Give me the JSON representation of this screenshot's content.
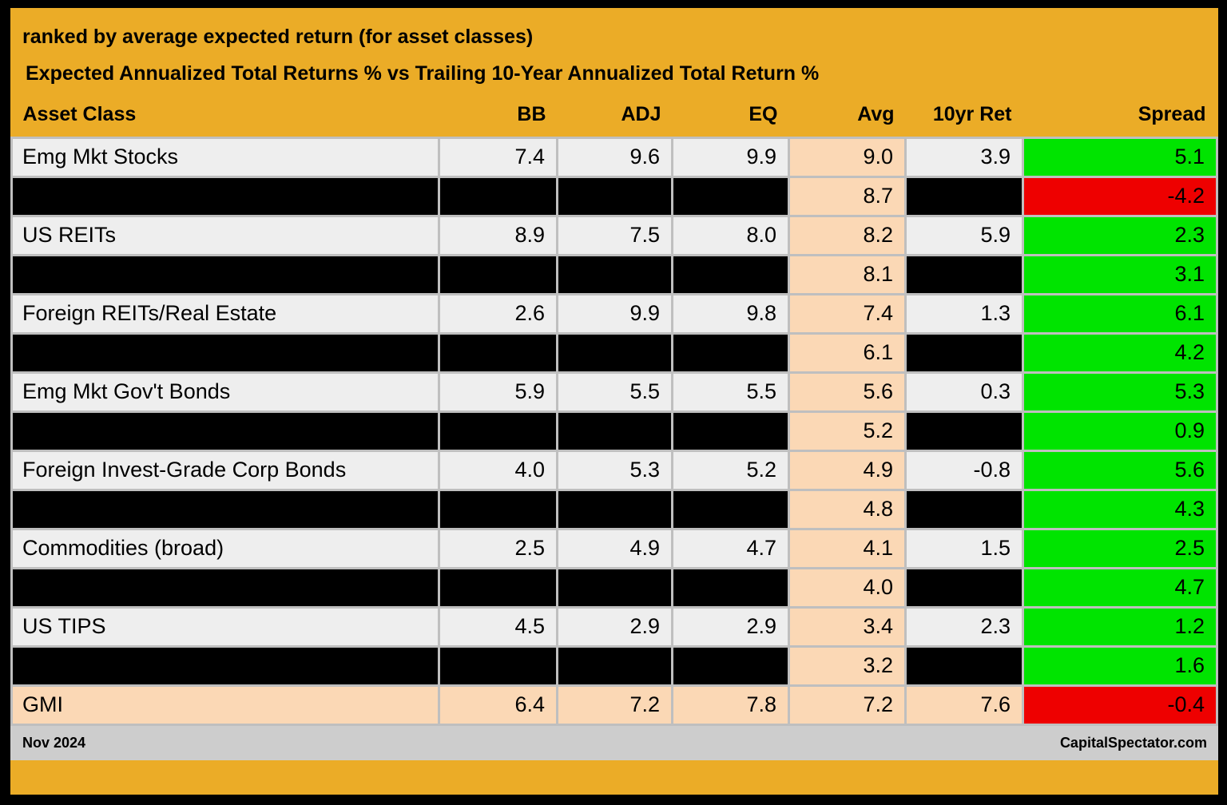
{
  "header": {
    "title_line1": "ranked by average expected return (for asset classes)",
    "title_line2": "Expected Annualized Total Returns % vs Trailing 10-Year Annualized Total Return %"
  },
  "chart_data": {
    "type": "table",
    "title": "Expected Annualized Total Returns % vs Trailing 10-Year Annualized Total Return %",
    "subtitle": "ranked by average expected return (for asset classes)",
    "columns": [
      "Asset Class",
      "BB",
      "ADJ",
      "EQ",
      "Avg",
      "10yr Ret",
      "Spread"
    ],
    "rows": [
      {
        "asset": "Emg Mkt Stocks",
        "bb": 7.4,
        "adj": 9.6,
        "eq": 9.9,
        "avg": 9.0,
        "ret10": 3.9,
        "spread": 5.1,
        "row_style": "normal",
        "spread_style": "positive"
      },
      {
        "asset": null,
        "bb": null,
        "adj": null,
        "eq": null,
        "avg": 8.7,
        "ret10": null,
        "spread": -4.2,
        "row_style": "redacted",
        "spread_style": "negative"
      },
      {
        "asset": "US REITs",
        "bb": 8.9,
        "adj": 7.5,
        "eq": 8.0,
        "avg": 8.2,
        "ret10": 5.9,
        "spread": 2.3,
        "row_style": "normal",
        "spread_style": "positive"
      },
      {
        "asset": null,
        "bb": null,
        "adj": null,
        "eq": null,
        "avg": 8.1,
        "ret10": null,
        "spread": 3.1,
        "row_style": "redacted",
        "spread_style": "positive"
      },
      {
        "asset": "Foreign REITs/Real Estate",
        "bb": 2.6,
        "adj": 9.9,
        "eq": 9.8,
        "avg": 7.4,
        "ret10": 1.3,
        "spread": 6.1,
        "row_style": "normal",
        "spread_style": "positive"
      },
      {
        "asset": null,
        "bb": null,
        "adj": null,
        "eq": null,
        "avg": 6.1,
        "ret10": null,
        "spread": 4.2,
        "row_style": "redacted",
        "spread_style": "positive"
      },
      {
        "asset": "Emg Mkt Gov't Bonds",
        "bb": 5.9,
        "adj": 5.5,
        "eq": 5.5,
        "avg": 5.6,
        "ret10": 0.3,
        "spread": 5.3,
        "row_style": "normal",
        "spread_style": "positive"
      },
      {
        "asset": null,
        "bb": null,
        "adj": null,
        "eq": null,
        "avg": 5.2,
        "ret10": null,
        "spread": 0.9,
        "row_style": "redacted",
        "spread_style": "positive"
      },
      {
        "asset": "Foreign Invest-Grade Corp Bonds",
        "bb": 4.0,
        "adj": 5.3,
        "eq": 5.2,
        "avg": 4.9,
        "ret10": -0.8,
        "spread": 5.6,
        "row_style": "normal",
        "spread_style": "positive"
      },
      {
        "asset": null,
        "bb": null,
        "adj": null,
        "eq": null,
        "avg": 4.8,
        "ret10": null,
        "spread": 4.3,
        "row_style": "redacted",
        "spread_style": "positive"
      },
      {
        "asset": "Commodities (broad)",
        "bb": 2.5,
        "adj": 4.9,
        "eq": 4.7,
        "avg": 4.1,
        "ret10": 1.5,
        "spread": 2.5,
        "row_style": "normal",
        "spread_style": "positive"
      },
      {
        "asset": null,
        "bb": null,
        "adj": null,
        "eq": null,
        "avg": 4.0,
        "ret10": null,
        "spread": 4.7,
        "row_style": "redacted",
        "spread_style": "positive"
      },
      {
        "asset": "US TIPS",
        "bb": 4.5,
        "adj": 2.9,
        "eq": 2.9,
        "avg": 3.4,
        "ret10": 2.3,
        "spread": 1.2,
        "row_style": "normal",
        "spread_style": "positive"
      },
      {
        "asset": null,
        "bb": null,
        "adj": null,
        "eq": null,
        "avg": 3.2,
        "ret10": null,
        "spread": 1.6,
        "row_style": "redacted",
        "spread_style": "positive"
      },
      {
        "asset": "GMI",
        "bb": 6.4,
        "adj": 7.2,
        "eq": 7.8,
        "avg": 7.2,
        "ret10": 7.6,
        "spread": -0.4,
        "row_style": "highlight",
        "spread_style": "negative"
      }
    ],
    "value_format": "one_decimal_percent",
    "layout_hints": {
      "avg_column_highlighted": true,
      "redacted_rows_blacked_out": true,
      "gmi_row_highlighted": true
    }
  },
  "footer": {
    "date": "Nov 2024",
    "credit": "CapitalSpectator.com"
  },
  "colors": {
    "gold_header": "#EBAC27",
    "row_bg": "#EEEEEE",
    "gridline": "#BFBFBF",
    "avg_peach": "#FBD8B5",
    "spread_positive_green": "#00E400",
    "spread_negative_red": "#EE0000",
    "redacted_black": "#000000",
    "footer_gray": "#CDCDCD",
    "frame_black": "#000000"
  }
}
